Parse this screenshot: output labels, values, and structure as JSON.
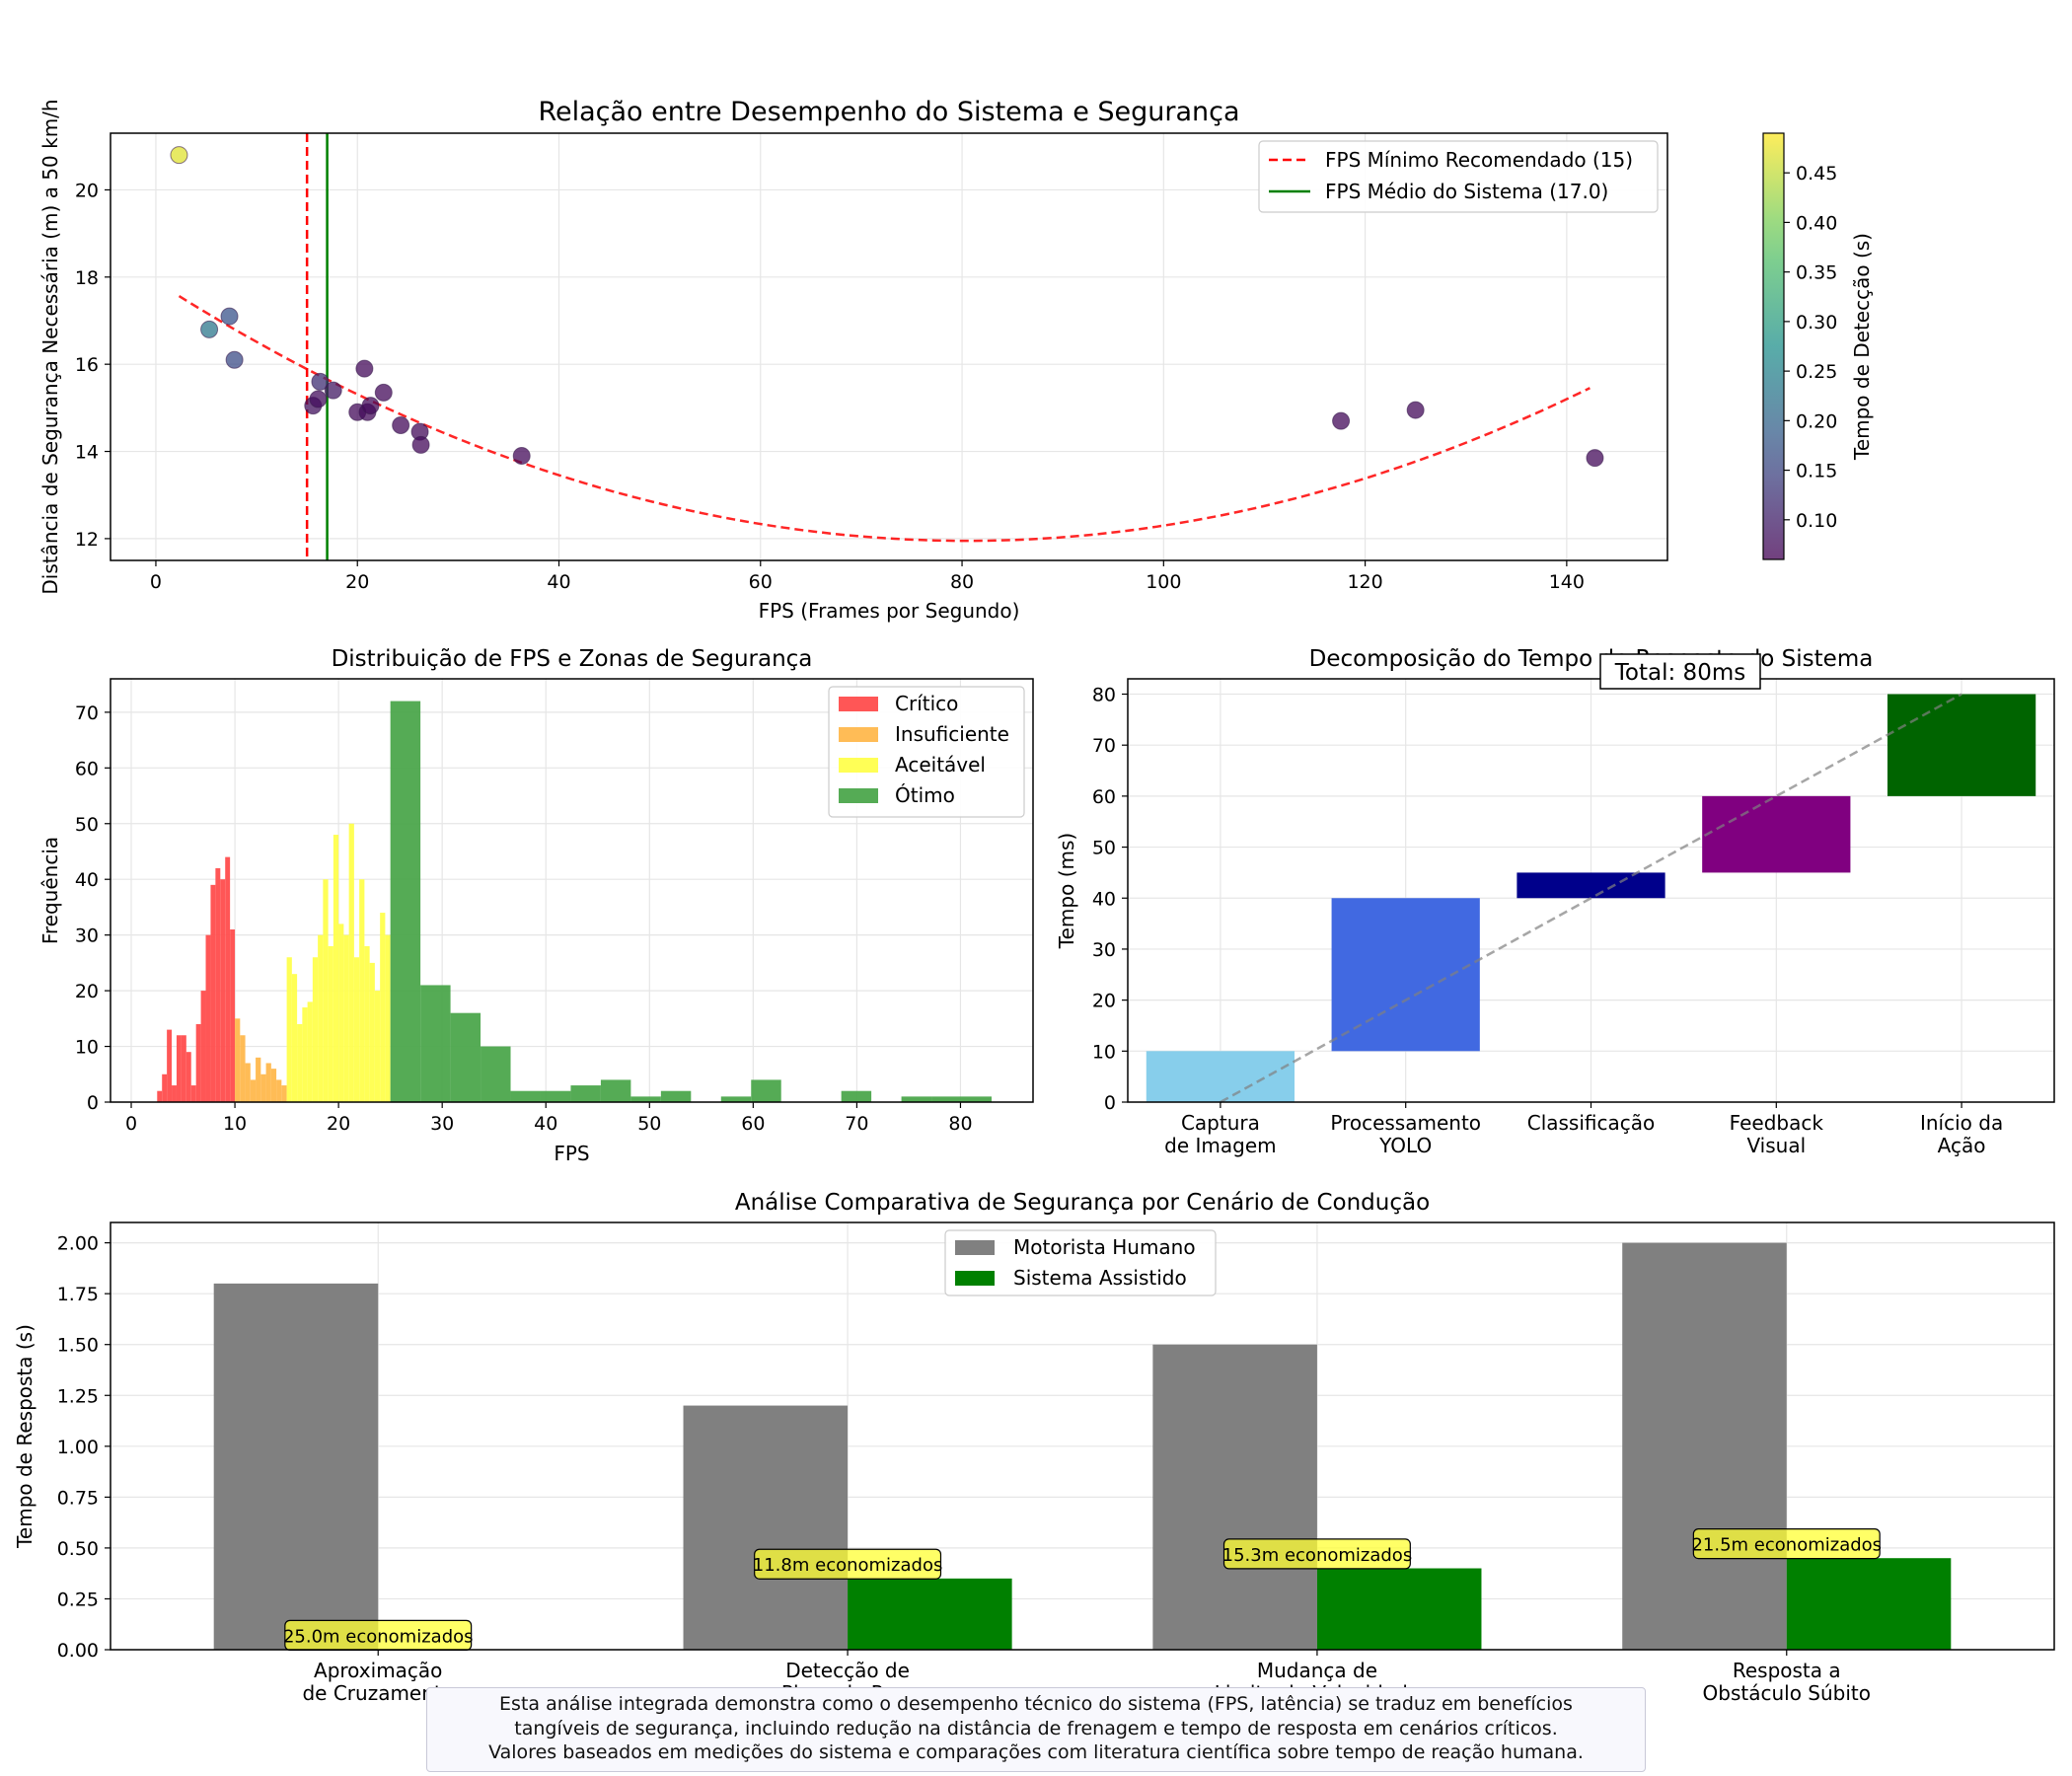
{
  "colors": {
    "critico": "#ff4d4d",
    "insuficiente": "#ffb84d",
    "aceitavel": "#ffff4d",
    "otimo": "#4ca64c",
    "captura": "#87ceeb",
    "processamento": "#4169e1",
    "classificacao": "#00008b",
    "feedback": "#800080",
    "inicio": "#006400",
    "humano": "#808080",
    "assistido": "#008000",
    "fps_min_line": "#ff0000",
    "fps_mean_line": "#008000",
    "fit": "#ff0000"
  },
  "chart_data": [
    {
      "type": "scatter",
      "title": "Relação entre Desempenho do Sistema e Segurança",
      "xlabel": "FPS (Frames por Segundo)",
      "ylabel": "Distância de Segurança Necessária (m) a 50 km/h",
      "xlim": [
        -4.5,
        150
      ],
      "ylim": [
        11.5,
        21.3
      ],
      "xticks": [
        0,
        20,
        40,
        60,
        80,
        100,
        120,
        140
      ],
      "yticks": [
        12,
        14,
        16,
        18,
        20
      ],
      "grid": true,
      "legend_position": "top-right",
      "legend": [
        "FPS Mínimo Recomendado (15)",
        "FPS Médio do Sistema (17.0)"
      ],
      "reference_lines": [
        {
          "x": 15,
          "style": "dashed",
          "color": "#ff0000"
        },
        {
          "x": 17.0,
          "style": "solid",
          "color": "#008000"
        }
      ],
      "fit_curve": {
        "type": "quadratic",
        "x_range": [
          2.3,
          143
        ],
        "vertex": [
          80.5,
          11.95
        ],
        "a": 0.000918,
        "style": "dashed"
      },
      "colorbar": {
        "label": "Tempo de Detecção (s)",
        "ticks": [
          0.1,
          0.15,
          0.2,
          0.25,
          0.3,
          0.35,
          0.4,
          0.45
        ],
        "range": [
          0.06,
          0.49
        ],
        "colormap": "viridis"
      },
      "points": [
        {
          "x": 2.3,
          "y": 20.8,
          "t": 0.47
        },
        {
          "x": 5.3,
          "y": 16.8,
          "t": 0.23
        },
        {
          "x": 7.3,
          "y": 17.1,
          "t": 0.17
        },
        {
          "x": 7.8,
          "y": 16.1,
          "t": 0.16
        },
        {
          "x": 15.6,
          "y": 15.05,
          "t": 0.08
        },
        {
          "x": 16.1,
          "y": 15.2,
          "t": 0.075
        },
        {
          "x": 16.3,
          "y": 15.6,
          "t": 0.12
        },
        {
          "x": 17.6,
          "y": 15.4,
          "t": 0.09
        },
        {
          "x": 20.0,
          "y": 14.9,
          "t": 0.07
        },
        {
          "x": 20.7,
          "y": 15.9,
          "t": 0.07
        },
        {
          "x": 21.0,
          "y": 14.9,
          "t": 0.07
        },
        {
          "x": 21.3,
          "y": 15.05,
          "t": 0.07
        },
        {
          "x": 22.6,
          "y": 15.35,
          "t": 0.07
        },
        {
          "x": 24.3,
          "y": 14.6,
          "t": 0.07
        },
        {
          "x": 26.2,
          "y": 14.45,
          "t": 0.07
        },
        {
          "x": 26.3,
          "y": 14.15,
          "t": 0.07
        },
        {
          "x": 36.3,
          "y": 13.9,
          "t": 0.07
        },
        {
          "x": 117.6,
          "y": 14.7,
          "t": 0.07
        },
        {
          "x": 125.0,
          "y": 14.95,
          "t": 0.07
        },
        {
          "x": 142.8,
          "y": 13.85,
          "t": 0.07
        }
      ]
    },
    {
      "type": "bar",
      "title": "Distribuição de FPS e Zonas de Segurança",
      "xlabel": "FPS",
      "ylabel": "Frequência",
      "xlim": [
        -2,
        87
      ],
      "ylim": [
        0,
        76
      ],
      "xticks": [
        0,
        10,
        20,
        30,
        40,
        50,
        60,
        70,
        80
      ],
      "yticks": [
        0,
        10,
        20,
        30,
        40,
        50,
        60,
        70
      ],
      "grid": true,
      "legend_position": "top-right",
      "series": [
        {
          "name": "Crítico",
          "range": [
            2.5,
            10
          ],
          "counts": [
            2,
            5,
            13,
            3,
            12,
            12,
            9,
            3,
            14,
            20,
            30,
            39,
            42,
            40,
            44,
            31
          ]
        },
        {
          "name": "Insuficiente",
          "range": [
            10,
            15
          ],
          "counts": [
            15,
            12,
            7,
            4,
            8,
            5,
            7,
            6,
            4,
            3
          ]
        },
        {
          "name": "Aceitável",
          "range": [
            15,
            25
          ],
          "counts": [
            26,
            23,
            14,
            17,
            18,
            26,
            30,
            40,
            28,
            48,
            32,
            30,
            50,
            26,
            40,
            28,
            25,
            20,
            34,
            30
          ]
        },
        {
          "name": "Ótimo",
          "edges": [
            25,
            27.9,
            30.8,
            33.7,
            36.6,
            39.5,
            42.4,
            45.3,
            48.2,
            51.1,
            54,
            56.9,
            59.8,
            62.7,
            65.6,
            68.5,
            71.4,
            74.3,
            77.2,
            80.1,
            83
          ],
          "counts": [
            72,
            21,
            16,
            10,
            2,
            2,
            3,
            4,
            1,
            2,
            0,
            1,
            4,
            0,
            0,
            2,
            0,
            1,
            1,
            1
          ]
        }
      ]
    },
    {
      "type": "bar",
      "title": "Decomposição do Tempo de Resposta do Sistema",
      "ylabel": "Tempo (ms)",
      "ylim": [
        0,
        83
      ],
      "yticks": [
        0,
        10,
        20,
        30,
        40,
        50,
        60,
        70,
        80
      ],
      "grid": true,
      "total_label": "Total: 80ms",
      "categories": [
        [
          "Captura",
          "de Imagem"
        ],
        [
          "Processamento",
          "YOLO"
        ],
        [
          "Classificação"
        ],
        [
          "Feedback",
          "Visual"
        ],
        [
          "Início da",
          "Ação"
        ]
      ],
      "segments": [
        {
          "start": 0,
          "end": 10
        },
        {
          "start": 10,
          "end": 40
        },
        {
          "start": 40,
          "end": 45
        },
        {
          "start": 45,
          "end": 60
        },
        {
          "start": 60,
          "end": 80
        }
      ],
      "cumulative_line": {
        "from": [
          0,
          0
        ],
        "to": [
          4,
          80
        ],
        "style": "dashed"
      }
    },
    {
      "type": "bar",
      "title": "Análise Comparativa de Segurança por Cenário de Condução",
      "ylabel": "Tempo de Resposta (s)",
      "ylim": [
        0,
        2.1
      ],
      "yticks": [
        "0.00",
        "0.25",
        "0.50",
        "0.75",
        "1.00",
        "1.25",
        "1.50",
        "1.75",
        "2.00"
      ],
      "grid": true,
      "legend_position": "top-center",
      "categories": [
        [
          "Aproximação",
          "de Cruzamento"
        ],
        [
          "Detecção de",
          "Placa de Pare"
        ],
        [
          "Mudança de",
          "Limite de Velocidade"
        ],
        [
          "Resposta a",
          "Obstáculo Súbito"
        ]
      ],
      "series": [
        {
          "name": "Motorista Humano",
          "values": [
            1.8,
            1.2,
            1.5,
            2.0
          ]
        },
        {
          "name": "Sistema Assistido",
          "values": [
            0.0,
            0.35,
            0.4,
            0.45
          ]
        }
      ],
      "annotations": [
        "25.0m economizados",
        "11.8m economizados",
        "15.3m economizados",
        "21.5m economizados"
      ]
    }
  ],
  "caption": {
    "line1": "Esta análise integrada demonstra como o desempenho técnico do sistema (FPS, latência) se traduz em benefícios",
    "line2": "tangíveis de segurança, incluindo redução na distância de frenagem e tempo de resposta em cenários críticos.",
    "line3": "Valores baseados em medições do sistema e comparações com literatura científica sobre tempo de reação humana."
  }
}
